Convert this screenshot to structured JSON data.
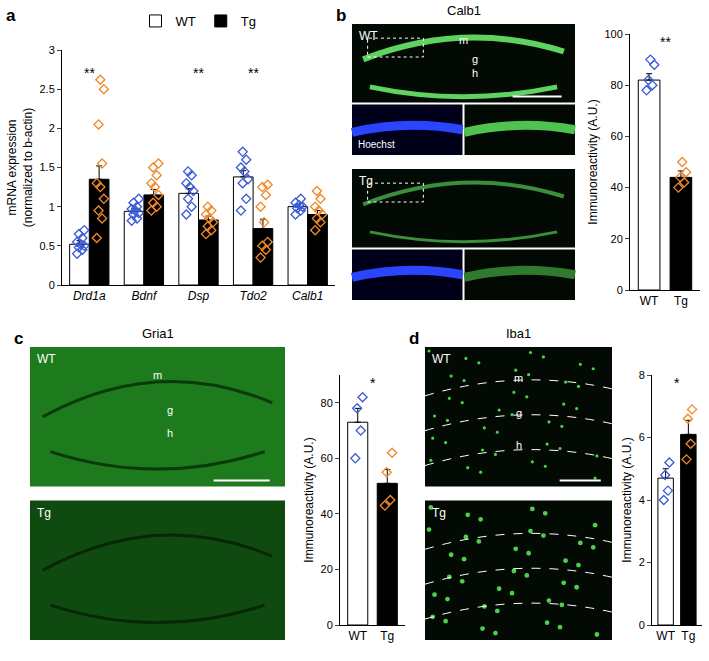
{
  "chart_data": [
    {
      "panel": "a",
      "type": "bar",
      "categories": [
        "Drd1a",
        "Bdnf",
        "Dsp",
        "Tdo2",
        "Calb1"
      ],
      "ylabel": "mRNA expression\n(normalized to b-actin)",
      "ylim": [
        0,
        3
      ],
      "yticks": [
        0,
        0.5,
        1,
        1.5,
        2,
        2.5,
        3
      ],
      "legend": "top",
      "series": [
        {
          "name": "WT",
          "color": "#ffffff",
          "values": [
            0.52,
            0.94,
            1.17,
            1.38,
            1.0
          ],
          "errors": [
            0.05,
            0.04,
            0.06,
            0.08,
            0.03
          ],
          "points": {
            "marker": "diamond-open",
            "color": "#3b5bd6",
            "values": [
              [
                0.4,
                0.45,
                0.48,
                0.5,
                0.52,
                0.55,
                0.6,
                0.65,
                0.7
              ],
              [
                0.82,
                0.85,
                0.9,
                0.92,
                0.95,
                0.97,
                1.0,
                1.05,
                1.1
              ],
              [
                0.9,
                1.0,
                1.1,
                1.2,
                1.25,
                1.3,
                1.4,
                1.45
              ],
              [
                0.95,
                1.1,
                1.3,
                1.35,
                1.45,
                1.5,
                1.6,
                1.7
              ],
              [
                0.9,
                0.95,
                0.98,
                1.0,
                1.02,
                1.05,
                1.1
              ]
            ]
          }
        },
        {
          "name": "Tg",
          "color": "#000000",
          "values": [
            1.35,
            1.15,
            0.83,
            0.72,
            0.9
          ],
          "errors": [
            0.17,
            0.07,
            0.05,
            0.12,
            0.05
          ],
          "points": {
            "marker": "diamond-open",
            "color": "#f0892a",
            "values": [
              [
                0.6,
                0.85,
                0.95,
                1.1,
                1.25,
                1.3,
                1.55,
                2.05,
                2.5,
                2.62
              ],
              [
                0.95,
                1.0,
                1.05,
                1.15,
                1.25,
                1.3,
                1.4,
                1.5,
                1.55
              ],
              [
                0.65,
                0.7,
                0.75,
                0.8,
                0.85,
                0.9,
                0.95,
                1.0
              ],
              [
                0.35,
                0.45,
                0.5,
                0.55,
                0.8,
                1.0,
                1.15,
                1.25,
                1.28
              ],
              [
                0.7,
                0.8,
                0.85,
                0.9,
                0.95,
                1.0,
                1.1,
                1.2
              ]
            ]
          }
        }
      ],
      "annotations": [
        {
          "category": "Drd1a",
          "text": "**"
        },
        {
          "category": "Dsp",
          "text": "**"
        },
        {
          "category": "Tdo2",
          "text": "**"
        }
      ]
    },
    {
      "panel": "b",
      "type": "bar",
      "categories": [
        "WT",
        "Tg"
      ],
      "ylabel": "Immunoreactivity (A.U.)",
      "ylim": [
        0,
        100
      ],
      "yticks": [
        0,
        20,
        40,
        60,
        80,
        100
      ],
      "series": [
        {
          "colors": [
            "#ffffff",
            "#000000"
          ],
          "values": [
            82,
            44
          ],
          "errors": [
            2.5,
            2.5
          ],
          "points": {
            "marker": "diamond-open",
            "colors": [
              "#3b5bd6",
              "#f0892a"
            ],
            "values": [
              [
                78,
                80,
                82,
                88,
                90
              ],
              [
                40,
                42,
                44,
                46,
                50
              ]
            ]
          }
        }
      ],
      "annotations": [
        {
          "category": "WT",
          "text": "**"
        }
      ]
    },
    {
      "panel": "c",
      "type": "bar",
      "categories": [
        "WT",
        "Tg"
      ],
      "ylabel": "Immunoreactivity (A.U.)",
      "ylim": [
        0,
        90
      ],
      "yticks": [
        0,
        20,
        40,
        60,
        80
      ],
      "series": [
        {
          "colors": [
            "#ffffff",
            "#000000"
          ],
          "values": [
            73,
            51
          ],
          "errors": [
            5,
            5
          ],
          "points": {
            "marker": "diamond-open",
            "colors": [
              "#3b5bd6",
              "#f0892a"
            ],
            "values": [
              [
                60,
                70,
                78,
                82
              ],
              [
                43,
                45,
                55,
                62
              ]
            ]
          }
        }
      ],
      "annotations": [
        {
          "category": "WT",
          "text": "*"
        }
      ]
    },
    {
      "panel": "d",
      "type": "bar",
      "categories": [
        "WT",
        "Tg"
      ],
      "ylabel": "Immunoreactivity (A.U.)",
      "ylim": [
        0,
        8
      ],
      "yticks": [
        0,
        2,
        4,
        6,
        8
      ],
      "series": [
        {
          "colors": [
            "#ffffff",
            "#000000"
          ],
          "values": [
            4.7,
            6.1
          ],
          "errors": [
            0.3,
            0.45
          ],
          "points": {
            "marker": "diamond-open",
            "colors": [
              "#3b5bd6",
              "#f0892a"
            ],
            "values": [
              [
                4.0,
                4.3,
                4.8,
                5.2
              ],
              [
                5.3,
                5.8,
                6.6,
                6.9
              ]
            ]
          }
        }
      ],
      "annotations": [
        {
          "category": "WT",
          "text": "*"
        }
      ]
    }
  ],
  "images": [
    {
      "panel": "b",
      "title": "Calb1",
      "rows": [
        "WT",
        "Tg"
      ],
      "regions": [
        "m",
        "g",
        "h"
      ],
      "inset_label": "Hoechst"
    },
    {
      "panel": "c",
      "title": "Gria1",
      "rows": [
        "WT",
        "Tg"
      ],
      "regions": [
        "m",
        "g",
        "h"
      ]
    },
    {
      "panel": "d",
      "title": "Iba1",
      "rows": [
        "WT",
        "Tg"
      ],
      "regions": [
        "m",
        "g",
        "h"
      ]
    }
  ]
}
